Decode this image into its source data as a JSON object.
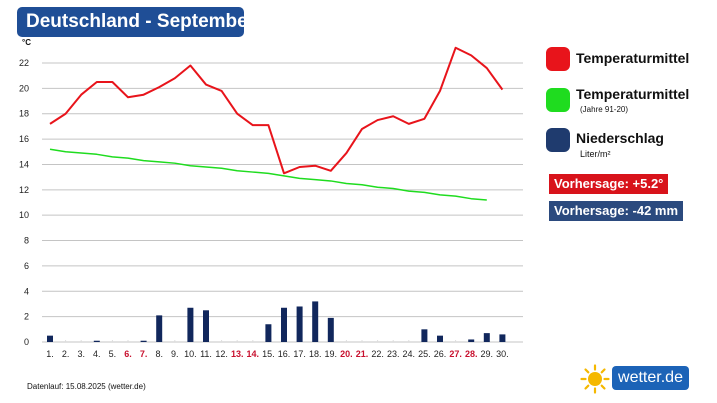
{
  "title": "Deutschland - September",
  "chart_data": {
    "type": "line",
    "y_unit": "°C",
    "ylim": [
      0,
      24
    ],
    "yticks": [
      0,
      2,
      4,
      6,
      8,
      10,
      12,
      14,
      16,
      18,
      20,
      22
    ],
    "grid": true,
    "categories": [
      "1.",
      "2.",
      "3.",
      "4.",
      "5.",
      "6.",
      "7.",
      "8.",
      "9.",
      "10.",
      "11.",
      "12.",
      "13.",
      "14.",
      "15.",
      "16.",
      "17.",
      "18.",
      "19.",
      "20.",
      "21.",
      "22.",
      "23.",
      "24.",
      "25.",
      "26.",
      "27.",
      "28.",
      "29.",
      "30."
    ],
    "weekend_days": [
      6,
      7,
      13,
      14,
      20,
      21,
      27,
      28
    ],
    "series": [
      {
        "name": "Temperaturmittel",
        "type": "line",
        "color": "#e8141b",
        "values": [
          17.2,
          18.0,
          19.5,
          20.5,
          20.5,
          19.3,
          19.5,
          20.1,
          20.8,
          21.8,
          20.3,
          19.8,
          18.0,
          17.1,
          17.1,
          13.3,
          13.8,
          13.9,
          13.5,
          14.9,
          16.8,
          17.5,
          17.8,
          17.2,
          17.6,
          19.8,
          23.2,
          22.6,
          21.6,
          19.9
        ]
      },
      {
        "name": "Temperaturmittel",
        "name_note": "(Jahre 91-20)",
        "type": "line",
        "color": "#1fdc1f",
        "values": [
          15.2,
          15.0,
          14.9,
          14.8,
          14.6,
          14.5,
          14.3,
          14.2,
          14.1,
          13.9,
          13.8,
          13.7,
          13.5,
          13.4,
          13.3,
          13.1,
          12.9,
          12.8,
          12.7,
          12.5,
          12.4,
          12.2,
          12.1,
          11.9,
          11.8,
          11.6,
          11.5,
          11.3,
          11.2,
          null
        ]
      },
      {
        "name": "Niederschlag",
        "unit": "Liter/m²",
        "type": "bar",
        "color": "#11275c",
        "values": [
          0.5,
          0,
          0,
          0.1,
          0,
          0,
          0.1,
          2.1,
          0,
          2.7,
          2.5,
          0,
          0,
          0,
          1.4,
          2.7,
          2.8,
          3.2,
          1.9,
          0,
          0,
          0,
          0,
          0,
          1.0,
          0.5,
          0,
          0.2,
          0.7,
          0.6
        ]
      }
    ]
  },
  "legend": {
    "temp": {
      "label": "Temperaturmittel",
      "color": "#e8141b"
    },
    "climate": {
      "label": "Temperaturmittel",
      "sub": "(Jahre 91-20)",
      "color": "#1fdc1f"
    },
    "precip": {
      "label": "Niederschlag",
      "sub": "Liter/m²",
      "color": "#1f3b6e"
    }
  },
  "forecast": {
    "temp": {
      "text": "Vorhersage: +5.2°",
      "color": "#d8131b"
    },
    "precip": {
      "text": "Vorhersage: -42 mm",
      "color": "#2b4a7e"
    }
  },
  "footer": {
    "text": "Datenlauf: 15.08.2025 (wetter.de)"
  },
  "brand": {
    "text": "wetter.de",
    "sun_icon": "sun-icon",
    "accent": "#f5b800",
    "bg": "#1c63b7"
  }
}
